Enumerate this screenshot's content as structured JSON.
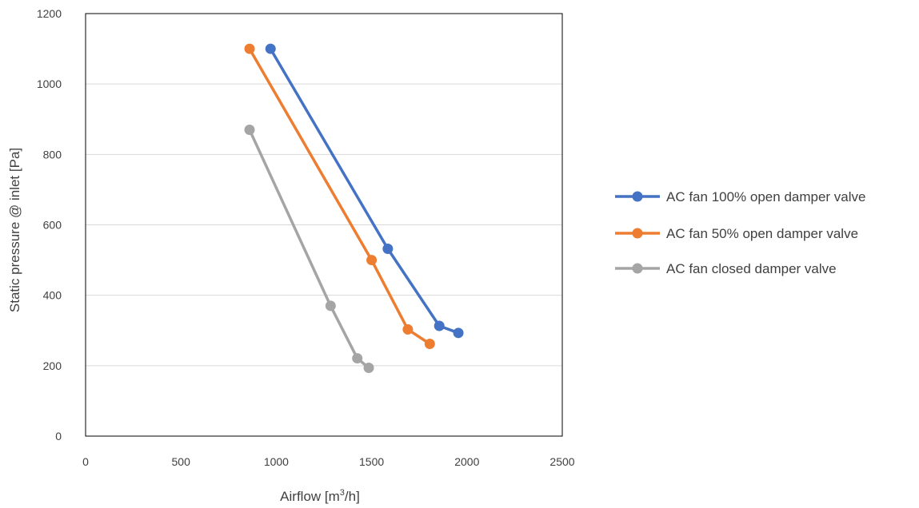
{
  "chart_data": {
    "type": "line",
    "xlabel": "Airflow [m³/h]",
    "xlabel_parts": {
      "base": "Airflow [m",
      "sup": "3",
      "tail": "/h]"
    },
    "ylabel": "Static pressure @ inlet [Pa]",
    "xlim": [
      0,
      2500
    ],
    "ylim": [
      0,
      1200
    ],
    "x_ticks": [
      0,
      500,
      1000,
      1500,
      2000,
      2500
    ],
    "y_ticks": [
      0,
      200,
      400,
      600,
      800,
      1000,
      1200
    ],
    "grid": "horizontal",
    "legend": "right",
    "series": [
      {
        "name": "AC fan 100% open damper valve",
        "color": "#4472C4",
        "points": [
          [
            970,
            1100
          ],
          [
            1585,
            532
          ],
          [
            1855,
            313
          ],
          [
            1955,
            293
          ]
        ]
      },
      {
        "name": "AC fan 50% open damper valve",
        "color": "#ED7D31",
        "points": [
          [
            860,
            1100
          ],
          [
            1500,
            500
          ],
          [
            1690,
            303
          ],
          [
            1805,
            262
          ]
        ]
      },
      {
        "name": "AC fan closed damper valve",
        "color": "#A5A5A5",
        "points": [
          [
            860,
            870
          ],
          [
            1285,
            370
          ],
          [
            1425,
            221
          ],
          [
            1485,
            194
          ]
        ]
      }
    ]
  }
}
